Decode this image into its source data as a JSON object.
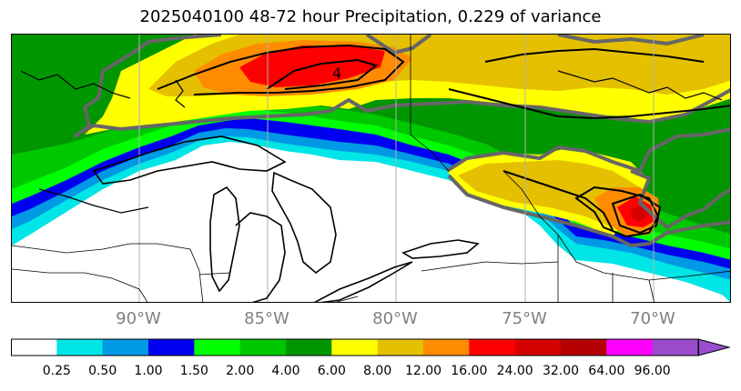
{
  "title": "2025040100 48-72 hour Precipitation, 0.229 of variance",
  "map": {
    "longitude_labels": [
      "90°W",
      "85°W",
      "80°W",
      "75°W",
      "70°W"
    ],
    "contour_label": "4",
    "colors": {
      "background": "#ffffff",
      "outline": "#000000",
      "gray_contour": "#666666",
      "grid": "#b0b0b0"
    }
  },
  "colorbar": {
    "labels": [
      "0.25",
      "0.50",
      "1.00",
      "1.50",
      "2.00",
      "4.00",
      "6.00",
      "8.00",
      "12.00",
      "16.00",
      "24.00",
      "32.00",
      "64.00",
      "96.00"
    ],
    "colors": [
      "#ffffff",
      "#00e5e5",
      "#0099e5",
      "#0000f0",
      "#00ff00",
      "#00c800",
      "#009600",
      "#ffff00",
      "#e5c000",
      "#ff8c00",
      "#ff0000",
      "#d40000",
      "#b40000",
      "#ff00ff",
      "#9a4ccc"
    ],
    "extend": "max"
  }
}
